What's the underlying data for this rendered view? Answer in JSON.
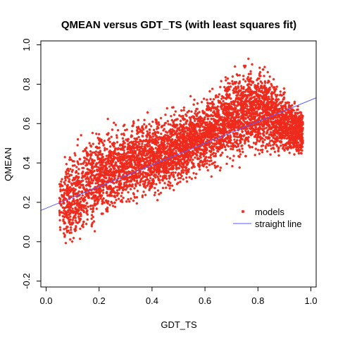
{
  "chart_data": {
    "type": "scatter",
    "title": "QMEAN versus GDT_TS (with least squares fit)",
    "xlabel": "GDT_TS",
    "ylabel": "QMEAN",
    "xlim": [
      -0.02,
      1.02
    ],
    "ylim": [
      -0.23,
      1.02
    ],
    "x_ticks": [
      0.0,
      0.2,
      0.4,
      0.6,
      0.8,
      1.0
    ],
    "x_tick_labels": [
      "0.0",
      "0.2",
      "0.4",
      "0.6",
      "0.8",
      "1.0"
    ],
    "y_ticks": [
      -0.2,
      0.0,
      0.2,
      0.4,
      0.6,
      0.8,
      1.0
    ],
    "y_tick_labels": [
      "-0.2",
      "0.0",
      "0.2",
      "0.4",
      "0.6",
      "0.8",
      "1.0"
    ],
    "grid": false,
    "legend_position": "bottom-right",
    "series": [
      {
        "name": "models",
        "kind": "points",
        "marker": "star",
        "color": "#ee2a1c",
        "density_profile": [
          {
            "x": 0.05,
            "y_low": 0.0,
            "y_high": 0.4
          },
          {
            "x": 0.1,
            "y_low": -0.1,
            "y_high": 0.55
          },
          {
            "x": 0.2,
            "y_low": 0.05,
            "y_high": 0.62
          },
          {
            "x": 0.3,
            "y_low": 0.12,
            "y_high": 0.66
          },
          {
            "x": 0.4,
            "y_low": 0.18,
            "y_high": 0.68
          },
          {
            "x": 0.5,
            "y_low": 0.25,
            "y_high": 0.72
          },
          {
            "x": 0.6,
            "y_low": 0.3,
            "y_high": 0.78
          },
          {
            "x": 0.7,
            "y_low": 0.35,
            "y_high": 0.93
          },
          {
            "x": 0.8,
            "y_low": 0.38,
            "y_high": 0.98
          },
          {
            "x": 0.9,
            "y_low": 0.4,
            "y_high": 0.8
          },
          {
            "x": 0.97,
            "y_low": 0.4,
            "y_high": 0.7
          }
        ]
      },
      {
        "name": "straight line",
        "kind": "line",
        "color": "#5b5bff",
        "intercept": 0.17,
        "slope": 0.55
      }
    ],
    "legend": [
      {
        "label": "models",
        "symbol": "star",
        "color": "#ee2a1c"
      },
      {
        "label": "straight line",
        "symbol": "line",
        "color": "#5b5bff"
      }
    ]
  }
}
